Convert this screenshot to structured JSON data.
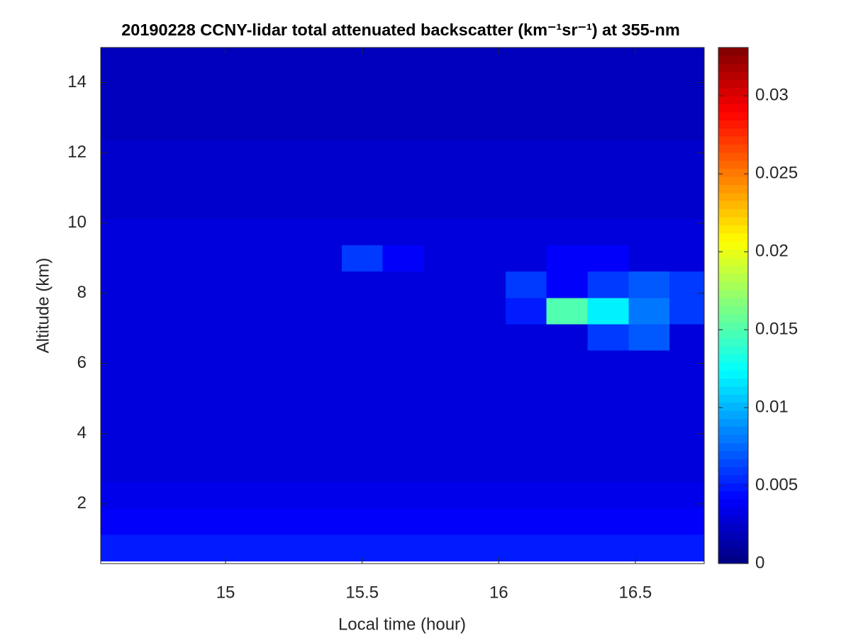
{
  "chart_data": {
    "type": "heatmap",
    "title": "20190228 CCNY-lidar total attenuated backscatter (km⁻¹sr⁻¹) at 355-nm",
    "xlabel": "Local time (hour)",
    "ylabel": "Altitude (km)",
    "colormap": "jet",
    "x": [
      14.6,
      14.75,
      14.9,
      15.05,
      15.2,
      15.35,
      15.5,
      15.65,
      15.8,
      15.95,
      16.1,
      16.25,
      16.4,
      16.55,
      16.7
    ],
    "y": [
      0.75,
      1.5,
      2.25,
      3,
      3.75,
      4.5,
      5.25,
      6,
      6.75,
      7.5,
      8.25,
      9,
      9.75,
      10.5,
      11.25,
      12,
      12.75,
      13.5,
      14.25,
      15
    ],
    "z": [
      [
        0.005,
        0.005,
        0.005,
        0.005,
        0.005,
        0.005,
        0.005,
        0.005,
        0.005,
        0.005,
        0.005,
        0.005,
        0.005,
        0.005,
        0.005
      ],
      [
        0.004,
        0.004,
        0.004,
        0.004,
        0.004,
        0.004,
        0.004,
        0.004,
        0.004,
        0.004,
        0.004,
        0.004,
        0.004,
        0.004,
        0.004
      ],
      [
        0.0035,
        0.0035,
        0.0035,
        0.0035,
        0.0035,
        0.0035,
        0.0035,
        0.0035,
        0.0035,
        0.0035,
        0.0035,
        0.0035,
        0.0035,
        0.0035,
        0.0035
      ],
      [
        0.003,
        0.003,
        0.003,
        0.003,
        0.003,
        0.003,
        0.003,
        0.003,
        0.003,
        0.003,
        0.003,
        0.003,
        0.003,
        0.003,
        0.003
      ],
      [
        0.003,
        0.003,
        0.003,
        0.003,
        0.003,
        0.003,
        0.003,
        0.003,
        0.003,
        0.003,
        0.003,
        0.003,
        0.003,
        0.003,
        0.003
      ],
      [
        0.003,
        0.003,
        0.003,
        0.003,
        0.003,
        0.003,
        0.003,
        0.003,
        0.003,
        0.003,
        0.003,
        0.003,
        0.003,
        0.003,
        0.003
      ],
      [
        0.003,
        0.003,
        0.003,
        0.003,
        0.003,
        0.003,
        0.003,
        0.003,
        0.003,
        0.003,
        0.003,
        0.003,
        0.003,
        0.003,
        0.003
      ],
      [
        0.003,
        0.003,
        0.003,
        0.003,
        0.003,
        0.003,
        0.003,
        0.003,
        0.003,
        0.003,
        0.003,
        0.003,
        0.003,
        0.003,
        0.003
      ],
      [
        0.003,
        0.003,
        0.003,
        0.003,
        0.003,
        0.003,
        0.003,
        0.003,
        0.003,
        0.003,
        0.003,
        0.003,
        0.006,
        0.007,
        0.003
      ],
      [
        0.003,
        0.003,
        0.003,
        0.003,
        0.003,
        0.003,
        0.003,
        0.003,
        0.003,
        0.003,
        0.005,
        0.015,
        0.012,
        0.008,
        0.006
      ],
      [
        0.003,
        0.003,
        0.003,
        0.003,
        0.003,
        0.003,
        0.003,
        0.003,
        0.003,
        0.003,
        0.006,
        0.004,
        0.006,
        0.007,
        0.006
      ],
      [
        0.003,
        0.003,
        0.003,
        0.003,
        0.003,
        0.003,
        0.006,
        0.004,
        0.003,
        0.003,
        0.003,
        0.004,
        0.004,
        0.003,
        0.003
      ],
      [
        0.003,
        0.003,
        0.003,
        0.003,
        0.003,
        0.003,
        0.003,
        0.003,
        0.003,
        0.003,
        0.003,
        0.003,
        0.003,
        0.003,
        0.003
      ],
      [
        0.0025,
        0.0025,
        0.0025,
        0.0025,
        0.0025,
        0.0025,
        0.0025,
        0.0025,
        0.0025,
        0.0025,
        0.0025,
        0.0025,
        0.0025,
        0.0025,
        0.0025
      ],
      [
        0.0025,
        0.0025,
        0.0025,
        0.0025,
        0.0025,
        0.0025,
        0.0025,
        0.0025,
        0.0025,
        0.0025,
        0.0025,
        0.0025,
        0.0025,
        0.0025,
        0.0025
      ],
      [
        0.0025,
        0.0025,
        0.0025,
        0.0025,
        0.0025,
        0.0025,
        0.0025,
        0.0025,
        0.0025,
        0.0025,
        0.0025,
        0.0025,
        0.0025,
        0.0025,
        0.0025
      ],
      [
        0.002,
        0.002,
        0.002,
        0.002,
        0.002,
        0.002,
        0.002,
        0.002,
        0.002,
        0.002,
        0.002,
        0.002,
        0.002,
        0.002,
        0.002
      ],
      [
        0.002,
        0.002,
        0.002,
        0.002,
        0.002,
        0.002,
        0.002,
        0.002,
        0.002,
        0.002,
        0.002,
        0.002,
        0.002,
        0.002,
        0.002
      ],
      [
        0.002,
        0.002,
        0.002,
        0.002,
        0.002,
        0.002,
        0.002,
        0.002,
        0.002,
        0.002,
        0.002,
        0.002,
        0.002,
        0.002,
        0.002
      ],
      [
        0.002,
        0.002,
        0.002,
        0.002,
        0.002,
        0.002,
        0.002,
        0.002,
        0.002,
        0.002,
        0.002,
        0.002,
        0.002,
        0.002,
        0.002
      ]
    ],
    "xlim": [
      14.543,
      16.752
    ],
    "xticks": [
      15,
      15.5,
      16,
      16.5
    ],
    "ylim": [
      0.3,
      15
    ],
    "yticks": [
      2,
      4,
      6,
      8,
      10,
      12,
      14
    ],
    "clim": [
      0,
      0.0331
    ],
    "cticks": [
      0,
      0.005,
      0.01,
      0.015,
      0.02,
      0.025,
      0.03
    ]
  }
}
